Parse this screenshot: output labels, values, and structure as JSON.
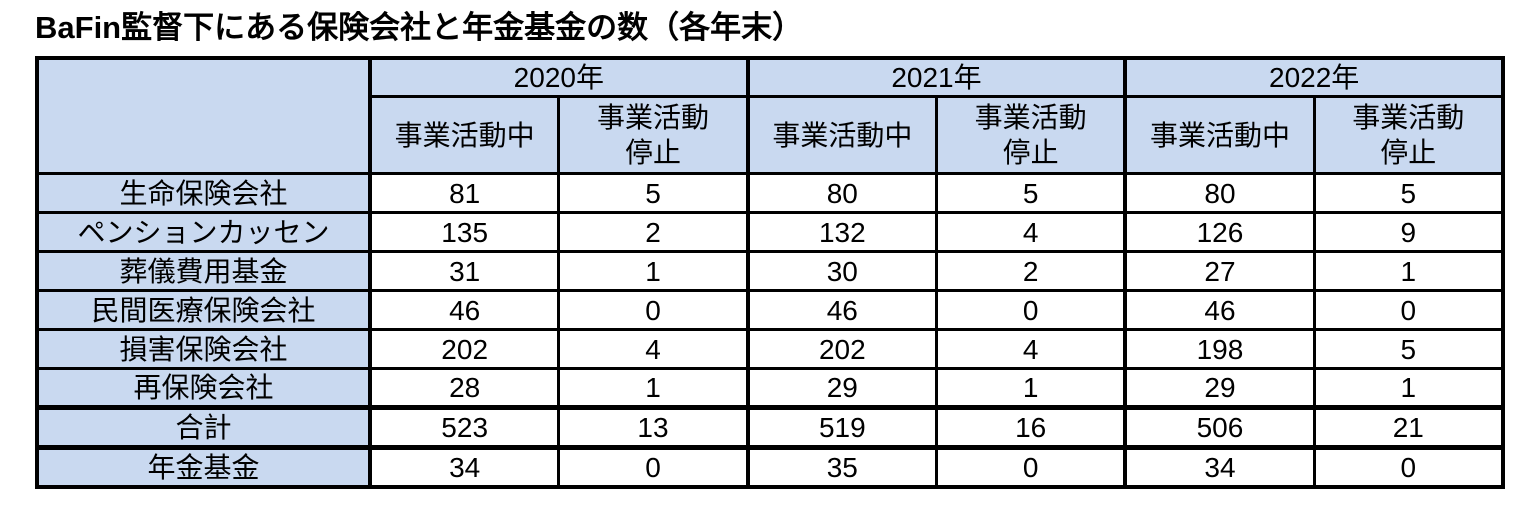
{
  "title": "BaFin監督下にある保険会社と年金基金の数（各年末）",
  "colors": {
    "header_fill": "#C9D9F0",
    "border": "#000000",
    "text": "#000000"
  },
  "chart_data": {
    "type": "table",
    "title": "BaFin監督下にある保険会社と年金基金の数（各年末）",
    "column_groups": [
      "2020年",
      "2021年",
      "2022年"
    ],
    "sub_columns": [
      "事業活動中",
      "事業活動停止"
    ],
    "rows": [
      {
        "label": "生命保険会社",
        "values": [
          81,
          5,
          80,
          5,
          80,
          5
        ],
        "section_break": false
      },
      {
        "label": "ペンションカッセン",
        "values": [
          135,
          2,
          132,
          4,
          126,
          9
        ],
        "section_break": false
      },
      {
        "label": "葬儀費用基金",
        "values": [
          31,
          1,
          30,
          2,
          27,
          1
        ],
        "section_break": false
      },
      {
        "label": "民間医療保険会社",
        "values": [
          46,
          0,
          46,
          0,
          46,
          0
        ],
        "section_break": false
      },
      {
        "label": "損害保険会社",
        "values": [
          202,
          4,
          202,
          4,
          198,
          5
        ],
        "section_break": false
      },
      {
        "label": "再保険会社",
        "values": [
          28,
          1,
          29,
          1,
          29,
          1
        ],
        "section_break": false
      },
      {
        "label": "合計",
        "values": [
          523,
          13,
          519,
          16,
          506,
          21
        ],
        "section_break": true
      },
      {
        "label": "年金基金",
        "values": [
          34,
          0,
          35,
          0,
          34,
          0
        ],
        "section_break": true
      }
    ]
  }
}
